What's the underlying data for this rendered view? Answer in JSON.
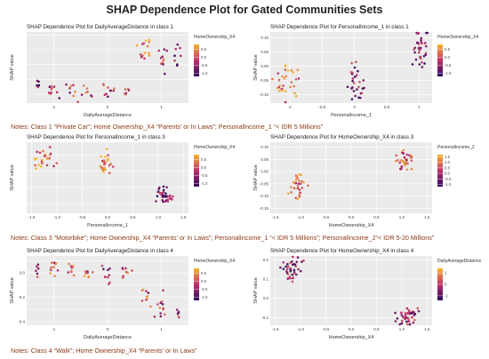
{
  "figure_title": "SHAP Dependence Plot for Gated Communities Sets",
  "notes": [
    "Notes: Class 1 “Private Car”; Home Ownership_X4 “Parents’ or In Laws”; PersonalIncome_1 “< IDR 5 Millions”",
    "Notes: Class 3 “Motorbike”; Home Ownership_X4 “Parents’ or In Laws”; PersonalIncome_1 “< IDR 5 Millions”; PersonalIncome_2“< IDR 5-20 Millions”",
    "Notes: Class 4 “Walk”; Home Ownership_X4 “Parents’ or In Laws”"
  ],
  "colors": {
    "low": "#2b0a5c",
    "mid": "#c2306f",
    "high": "#f7b52c",
    "panel_bg": "#ebebeb",
    "grid": "#ffffff"
  },
  "chart_data": [
    {
      "type": "scatter",
      "title": "SHAP Dependence Plot for DailyAverageDistance in class 1",
      "xlabel": "DailyAverageDistance",
      "ylabel": "SHAP value",
      "xlim": [
        -1.5,
        1.5
      ],
      "ylim": [
        -0.08,
        0.16
      ],
      "xticks": [
        -1,
        0,
        1
      ],
      "yticks": [
        -0.05,
        0.0,
        0.05,
        0.1,
        0.15
      ],
      "xtick_labels": [
        "-1",
        "0",
        "1"
      ],
      "ytick_labels": [
        "",
        "",
        "",
        "",
        ""
      ],
      "legend": {
        "title": "HomeOwnership_X4",
        "ticks": [
          "0.5",
          "0.0",
          "-0.5",
          "-1.0"
        ],
        "range": [
          -1.2,
          0.8
        ],
        "placement": "right"
      },
      "clusters": [
        {
          "x": -1.3,
          "y": -0.02,
          "n": 5,
          "sx": 0.02,
          "sy": 0.01,
          "c": 0.2
        },
        {
          "x": -1.0,
          "y": -0.04,
          "n": 10,
          "sx": 0.05,
          "sy": 0.012,
          "c": 0.4
        },
        {
          "x": -0.7,
          "y": -0.03,
          "n": 8,
          "sx": 0.05,
          "sy": 0.015,
          "c": 0.5
        },
        {
          "x": -0.4,
          "y": -0.045,
          "n": 8,
          "sx": 0.06,
          "sy": 0.012,
          "c": 0.5
        },
        {
          "x": 0.0,
          "y": -0.04,
          "n": 10,
          "sx": 0.05,
          "sy": 0.012,
          "c": 0.5
        },
        {
          "x": 0.35,
          "y": -0.04,
          "n": 6,
          "sx": 0.04,
          "sy": 0.01,
          "c": 0.5
        },
        {
          "x": 0.7,
          "y": 0.1,
          "n": 14,
          "sx": 0.06,
          "sy": 0.018,
          "c": 0.8
        },
        {
          "x": 1.0,
          "y": 0.06,
          "n": 10,
          "sx": 0.05,
          "sy": 0.02,
          "c": 0.5
        },
        {
          "x": 1.3,
          "y": 0.08,
          "n": 8,
          "sx": 0.05,
          "sy": 0.02,
          "c": 0.3
        }
      ]
    },
    {
      "type": "scatter",
      "title": "SHAP Dependence Plot for PersonalIncome_1 in class 1",
      "xlabel": "PersonalIncome_1",
      "ylabel": "SHAP value",
      "xlim": [
        -1.3,
        1.2
      ],
      "ylim": [
        -0.13,
        0.12
      ],
      "xticks": [
        -1,
        -0.5,
        0,
        0.5,
        1
      ],
      "yticks": [
        -0.1,
        -0.05,
        0.0,
        0.05,
        0.1
      ],
      "xtick_labels": [
        "-1",
        "-0.5",
        "0",
        "0.5",
        "1"
      ],
      "ytick_labels": [
        "-0.10",
        "-0.05",
        "0.00",
        "0.05",
        "0.10"
      ],
      "legend": {
        "title": "HomeOwnership_X4",
        "ticks": [
          "0.5",
          "0.0",
          "-0.5",
          "-1.0"
        ],
        "range": [
          -1.2,
          0.8
        ],
        "placement": "right"
      },
      "clusters": [
        {
          "x": -1.05,
          "y": -0.06,
          "n": 30,
          "sx": 0.09,
          "sy": 0.03,
          "c": 0.75
        },
        {
          "x": 0.05,
          "y": -0.06,
          "n": 28,
          "sx": 0.06,
          "sy": 0.03,
          "c": 0.35
        },
        {
          "x": 1.0,
          "y": 0.06,
          "n": 35,
          "sx": 0.07,
          "sy": 0.03,
          "c": 0.3
        }
      ]
    },
    {
      "type": "scatter",
      "title": "SHAP Dependence Plot for PersonalIncome_1 in class 3",
      "xlabel": "PersonalIncome_1",
      "ylabel": "SHAP value",
      "xlim": [
        -1.6,
        1.6
      ],
      "ylim": [
        -0.26,
        0.18
      ],
      "xticks": [
        -1.5,
        -1.0,
        -0.5,
        0.0,
        0.5,
        1.0,
        1.5
      ],
      "yticks": [
        -0.2,
        -0.1,
        0.0,
        0.1
      ],
      "xtick_labels": [
        "-1.5",
        "-1.0",
        "-0.5",
        "0.0",
        "0.5",
        "1.0",
        "1.5"
      ],
      "ytick_labels": [
        "",
        "",
        "",
        ""
      ],
      "legend": {
        "title": "HomeOwnership_X4",
        "ticks": [
          "0.5",
          "0.0",
          "-0.5",
          "-1.0"
        ],
        "range": [
          -1.2,
          0.8
        ],
        "placement": "right"
      },
      "clusters": [
        {
          "x": -1.25,
          "y": 0.07,
          "n": 28,
          "sx": 0.1,
          "sy": 0.035,
          "c": 0.75
        },
        {
          "x": -0.05,
          "y": 0.06,
          "n": 25,
          "sx": 0.06,
          "sy": 0.03,
          "c": 0.85
        },
        {
          "x": 1.1,
          "y": -0.16,
          "n": 32,
          "sx": 0.08,
          "sy": 0.03,
          "c": 0.25
        }
      ]
    },
    {
      "type": "scatter",
      "title": "SHAP Dependence Plot for HomeOwnership_X4 in class 3",
      "xlabel": "HomeOwnership_X4",
      "ylabel": "SHAP value",
      "xlim": [
        -1.6,
        1.6
      ],
      "ylim": [
        -0.17,
        0.12
      ],
      "xticks": [
        -1.5,
        -1.0,
        -0.5,
        0.0,
        0.5,
        1.0,
        1.5
      ],
      "yticks": [
        -0.15,
        -0.1,
        -0.05,
        0.0,
        0.05,
        0.1
      ],
      "xtick_labels": [
        "-1.5",
        "-1.0",
        "-0.5",
        "0.0",
        "0.5",
        "1.0",
        "1.5"
      ],
      "ytick_labels": [
        "-0.15",
        "-0.10",
        "-0.05",
        "0.00",
        "0.05",
        "0.10"
      ],
      "legend": {
        "title": "PersonalIncome_2",
        "ticks": [
          "1.5",
          "1.0",
          "0.5",
          "0.0",
          "-0.5",
          "-1.0"
        ],
        "range": [
          -1.2,
          1.7
        ],
        "placement": "right"
      },
      "clusters": [
        {
          "x": -1.05,
          "y": -0.06,
          "n": 30,
          "sx": 0.09,
          "sy": 0.025,
          "c": 0.75
        },
        {
          "x": 1.05,
          "y": 0.05,
          "n": 35,
          "sx": 0.08,
          "sy": 0.02,
          "c": 0.7
        }
      ]
    },
    {
      "type": "scatter",
      "title": "SHAP Dependence Plot for DailyAverageDistance in class 4",
      "xlabel": "DailyAverageDistance",
      "ylabel": "SHAP value",
      "xlim": [
        -1.5,
        1.5
      ],
      "ylim": [
        -0.43,
        0.14
      ],
      "xticks": [
        -1,
        0,
        1
      ],
      "yticks": [
        -0.4,
        -0.3,
        -0.2,
        -0.1,
        0.0,
        0.1
      ],
      "xtick_labels": [
        "-1",
        "0",
        "1"
      ],
      "ytick_labels": [
        "-0.4",
        "",
        "-0.2",
        "",
        "0.0",
        ""
      ],
      "legend": {
        "title": "HomeOwnership_X4",
        "ticks": [
          "0.5",
          "0.0",
          "-0.5",
          "-1.0"
        ],
        "range": [
          -1.2,
          0.8
        ],
        "placement": "right"
      },
      "clusters": [
        {
          "x": -1.3,
          "y": 0.02,
          "n": 6,
          "sx": 0.02,
          "sy": 0.03,
          "c": 0.5
        },
        {
          "x": -1.0,
          "y": 0.0,
          "n": 10,
          "sx": 0.04,
          "sy": 0.04,
          "c": 0.6
        },
        {
          "x": -0.7,
          "y": 0.02,
          "n": 8,
          "sx": 0.04,
          "sy": 0.035,
          "c": 0.6
        },
        {
          "x": -0.35,
          "y": 0.01,
          "n": 8,
          "sx": 0.05,
          "sy": 0.035,
          "c": 0.6
        },
        {
          "x": 0.0,
          "y": 0.0,
          "n": 10,
          "sx": 0.05,
          "sy": 0.04,
          "c": 0.5
        },
        {
          "x": 0.35,
          "y": 0.01,
          "n": 8,
          "sx": 0.05,
          "sy": 0.035,
          "c": 0.5
        },
        {
          "x": 0.7,
          "y": -0.2,
          "n": 10,
          "sx": 0.04,
          "sy": 0.04,
          "c": 0.6
        },
        {
          "x": 1.0,
          "y": -0.28,
          "n": 12,
          "sx": 0.05,
          "sy": 0.05,
          "c": 0.5
        },
        {
          "x": 1.3,
          "y": -0.33,
          "n": 6,
          "sx": 0.03,
          "sy": 0.04,
          "c": 0.4
        }
      ]
    },
    {
      "type": "scatter",
      "title": "SHAP Dependence Plot for HomeOwnership_X4 in class 4",
      "xlabel": "HomeOwnership_X4",
      "ylabel": "SHAP value",
      "xlim": [
        -1.6,
        1.6
      ],
      "ylim": [
        -0.14,
        0.22
      ],
      "xticks": [
        -1.5,
        -1.0,
        -0.5,
        0.0,
        0.5,
        1.0,
        1.5
      ],
      "yticks": [
        -0.1,
        0.0,
        0.1,
        0.2
      ],
      "xtick_labels": [
        "-1.5",
        "-1.0",
        "-0.5",
        "0.0",
        "0.5",
        "1.0",
        "1.5"
      ],
      "ytick_labels": [
        "-0.1",
        "0.0",
        "0.1",
        "0.2"
      ],
      "legend": {
        "title": "DailyAverageDistance",
        "ticks": [
          "1",
          "0",
          "-1"
        ],
        "range": [
          -1.4,
          1.4
        ],
        "placement": "right"
      },
      "clusters": [
        {
          "x": -1.15,
          "y": 0.15,
          "n": 38,
          "sx": 0.1,
          "sy": 0.03,
          "c": 0.35
        },
        {
          "x": 1.1,
          "y": -0.09,
          "n": 42,
          "sx": 0.1,
          "sy": 0.025,
          "c": 0.4
        }
      ]
    }
  ]
}
